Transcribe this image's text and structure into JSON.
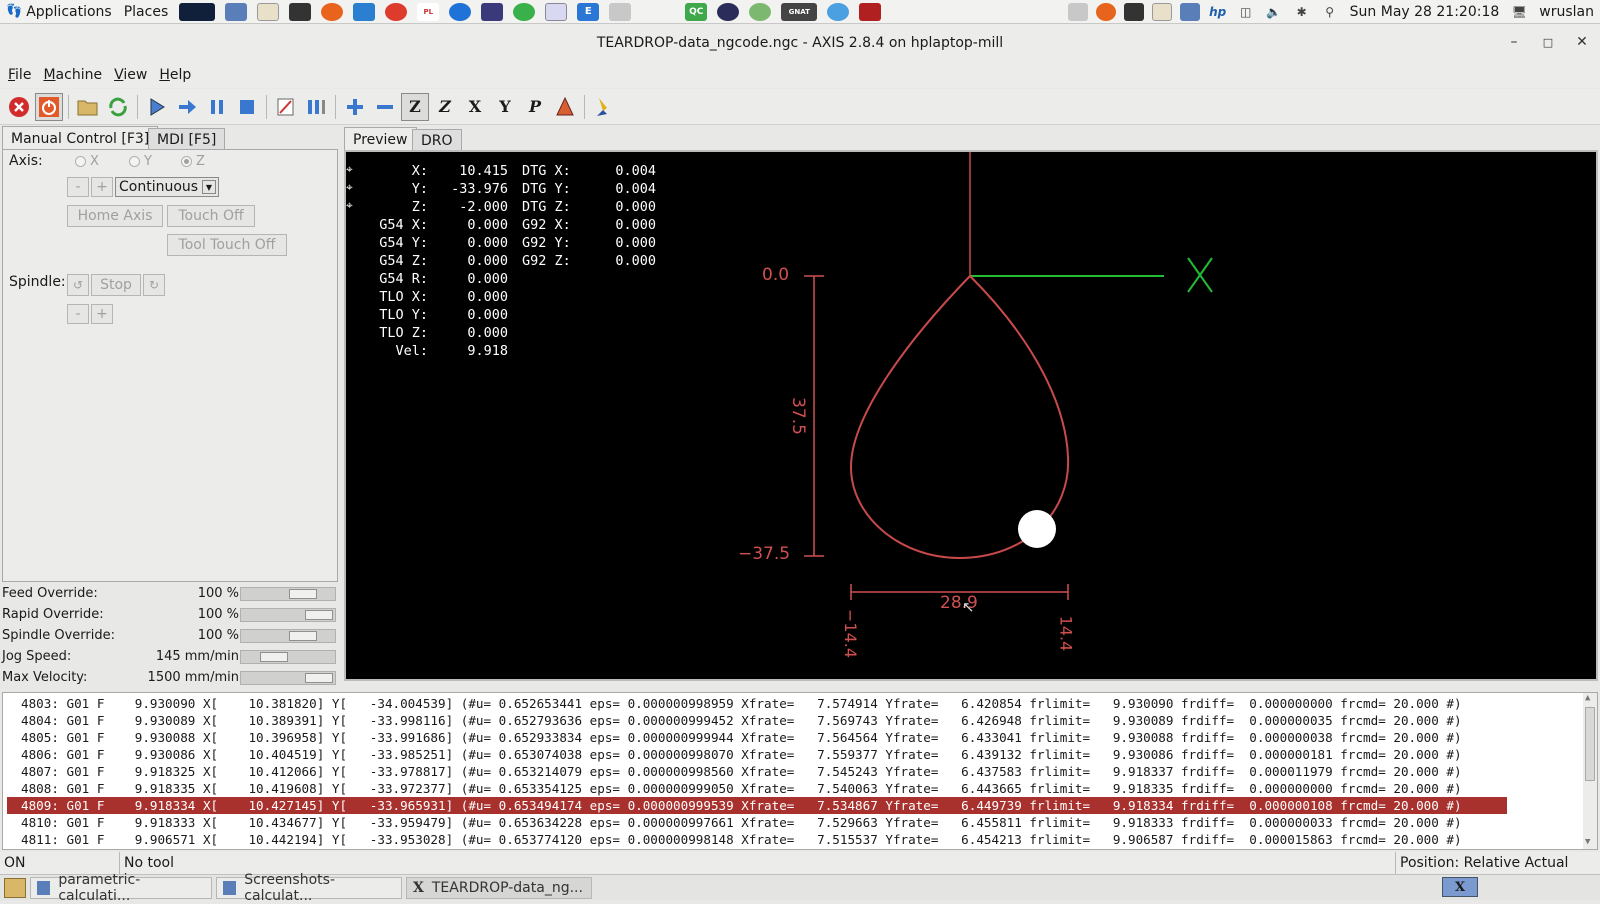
{
  "top_panel": {
    "applications": "Applications",
    "places": "Places",
    "clock": "Sun May 28  21:20:18",
    "user": "wruslan"
  },
  "window": {
    "title": "TEARDROP-data_ngcode.ngc - AXIS 2.8.4 on hplaptop-mill",
    "minimize": "–",
    "maximize": "□",
    "close": "✕"
  },
  "menubar": {
    "items": [
      {
        "u": "F",
        "rest": "ile"
      },
      {
        "u": "M",
        "rest": "achine"
      },
      {
        "u": "V",
        "rest": "iew"
      },
      {
        "u": "H",
        "rest": "elp"
      }
    ]
  },
  "left_tabs": [
    "Manual Control [F3]",
    "MDI [F5]"
  ],
  "manual": {
    "axis_label": "Axis:",
    "axes": [
      "X",
      "Y",
      "Z"
    ],
    "selected_axis": "Z",
    "minus": "-",
    "plus": "+",
    "jog_mode": "Continuous",
    "home_axis": "Home Axis",
    "touch_off": "Touch Off",
    "tool_touch_off": "Tool Touch Off",
    "spindle_label": "Spindle:",
    "stop": "Stop"
  },
  "overrides": [
    {
      "name": "Feed Override:",
      "value": "100 %",
      "fraction": 0.75
    },
    {
      "name": "Rapid Override:",
      "value": "100 %",
      "fraction": 1.0
    },
    {
      "name": "Spindle Override:",
      "value": "100 %",
      "fraction": 0.75
    },
    {
      "name": "Jog Speed:",
      "value": "145 mm/min",
      "fraction": 0.3
    },
    {
      "name": "Max Velocity:",
      "value": "1500 mm/min",
      "fraction": 1.0
    }
  ],
  "preview_tabs": [
    "Preview",
    "DRO"
  ],
  "dro": {
    "rows": [
      {
        "label": "X:",
        "value": "10.415",
        "label2": "DTG X:",
        "value2": "0.004"
      },
      {
        "label": "Y:",
        "value": "-33.976",
        "label2": "DTG Y:",
        "value2": "0.004"
      },
      {
        "label": "Z:",
        "value": "-2.000",
        "label2": "DTG Z:",
        "value2": "0.000"
      },
      {
        "label": "G54 X:",
        "value": "0.000",
        "label2": "G92 X:",
        "value2": "0.000"
      },
      {
        "label": "G54 Y:",
        "value": "0.000",
        "label2": "G92 Y:",
        "value2": "0.000"
      },
      {
        "label": "G54 Z:",
        "value": "0.000",
        "label2": "G92 Z:",
        "value2": "0.000"
      },
      {
        "label": "G54 R:",
        "value": "0.000",
        "label2": "",
        "value2": ""
      },
      {
        "label": "TLO X:",
        "value": "0.000",
        "label2": "",
        "value2": ""
      },
      {
        "label": "TLO Y:",
        "value": "0.000",
        "label2": "",
        "value2": ""
      },
      {
        "label": "TLO Z:",
        "value": "0.000",
        "label2": "",
        "value2": ""
      },
      {
        "label": "Vel:",
        "value": "9.918",
        "label2": "",
        "value2": ""
      }
    ]
  },
  "preview": {
    "dim_top": "0.0",
    "dim_height": "37.5",
    "dim_bottom": "−37.5",
    "dim_width": "28.9",
    "dim_left": "−14.4",
    "dim_right": "14.4",
    "axis_x_label": "X",
    "path_color": "#c84a4a",
    "dim_color": "#d05050",
    "axis_x_color": "#22bb33"
  },
  "gcode": {
    "lines": [
      "4803: G01 F    9.930090 X[    10.381820] Y[   -34.004539] (#u= 0.652653441 eps= 0.000000998959 Xfrate=   7.574914 Yfrate=   6.420854 frlimit=   9.930090 frdiff=  0.000000000 frcmd= 20.000 #)",
      "4804: G01 F    9.930089 X[    10.389391] Y[   -33.998116] (#u= 0.652793636 eps= 0.000000999452 Xfrate=   7.569743 Yfrate=   6.426948 frlimit=   9.930089 frdiff=  0.000000035 frcmd= 20.000 #)",
      "4805: G01 F    9.930088 X[    10.396958] Y[   -33.991686] (#u= 0.652933834 eps= 0.000000999944 Xfrate=   7.564564 Yfrate=   6.433041 frlimit=   9.930088 frdiff=  0.000000038 frcmd= 20.000 #)",
      "4806: G01 F    9.930086 X[    10.404519] Y[   -33.985251] (#u= 0.653074038 eps= 0.000000998070 Xfrate=   7.559377 Yfrate=   6.439132 frlimit=   9.930086 frdiff=  0.000000181 frcmd= 20.000 #)",
      "4807: G01 F    9.918325 X[    10.412066] Y[   -33.978817] (#u= 0.653214079 eps= 0.000000998560 Xfrate=   7.545243 Yfrate=   6.437583 frlimit=   9.918337 frdiff=  0.000011979 frcmd= 20.000 #)",
      "4808: G01 F    9.918335 X[    10.419608] Y[   -33.972377] (#u= 0.653354125 eps= 0.000000999050 Xfrate=   7.540063 Yfrate=   6.443665 frlimit=   9.918335 frdiff=  0.000000000 frcmd= 20.000 #)",
      "4809: G01 F    9.918334 X[    10.427145] Y[   -33.965931] (#u= 0.653494174 eps= 0.000000999539 Xfrate=   7.534867 Yfrate=   6.449739 frlimit=   9.918334 frdiff=  0.000000108 frcmd= 20.000 #)",
      "4810: G01 F    9.918333 X[    10.434677] Y[   -33.959479] (#u= 0.653634228 eps= 0.000000997661 Xfrate=   7.529663 Yfrate=   6.455811 frlimit=   9.918333 frdiff=  0.000000033 frcmd= 20.000 #)",
      "4811: G01 F    9.906571 X[    10.442194] Y[   -33.953028] (#u= 0.653774120 eps= 0.000000998148 Xfrate=   7.515537 Yfrate=   6.454213 frlimit=   9.906587 frdiff=  0.000015863 frcmd= 20.000 #)"
    ],
    "current_index": 6
  },
  "statusbar": {
    "state": "ON",
    "tool": "No tool",
    "position": "Position: Relative Actual"
  },
  "taskbar": {
    "tasks": [
      "parametric-calculati...",
      "Screenshots-calculat...",
      "TEARDROP-data_ng..."
    ]
  },
  "accent_colors": {
    "current_line": "#a8312e",
    "estop": "#d22b2b"
  }
}
